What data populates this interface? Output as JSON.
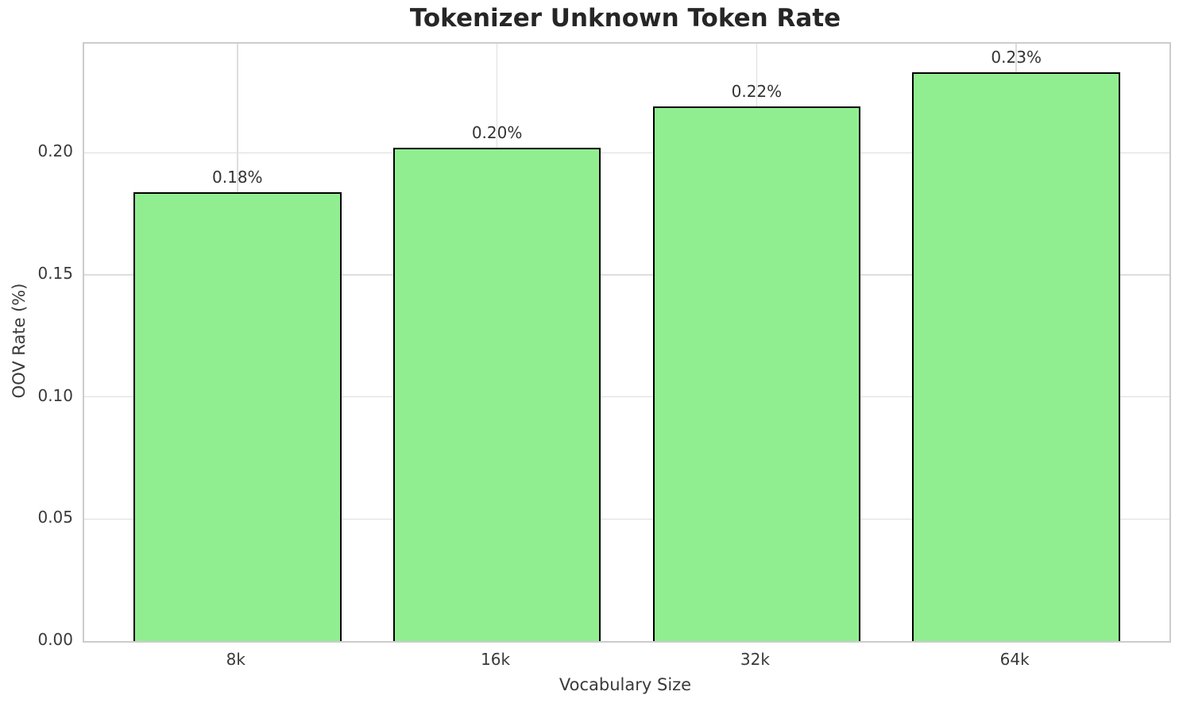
{
  "chart_data": {
    "type": "bar",
    "title": "Tokenizer Unknown Token Rate",
    "xlabel": "Vocabulary Size",
    "ylabel": "OOV Rate (%)",
    "categories": [
      "8k",
      "16k",
      "32k",
      "64k"
    ],
    "values": [
      0.184,
      0.202,
      0.219,
      0.233
    ],
    "bar_labels": [
      "0.18%",
      "0.20%",
      "0.22%",
      "0.23%"
    ],
    "ytick_values": [
      0.0,
      0.05,
      0.1,
      0.15,
      0.2
    ],
    "ytick_labels": [
      "0.00",
      "0.05",
      "0.10",
      "0.15",
      "0.20"
    ],
    "ylim": [
      0,
      0.2447
    ],
    "grid": true,
    "legend": "none",
    "colors": {
      "bar_fill": "#90EE90",
      "bar_edge": "#000000",
      "gridline": "#dddddd",
      "spine": "#cccccc",
      "title_text": "#262626",
      "axis_text": "#3a3a3a",
      "background": "#ffffff"
    }
  }
}
